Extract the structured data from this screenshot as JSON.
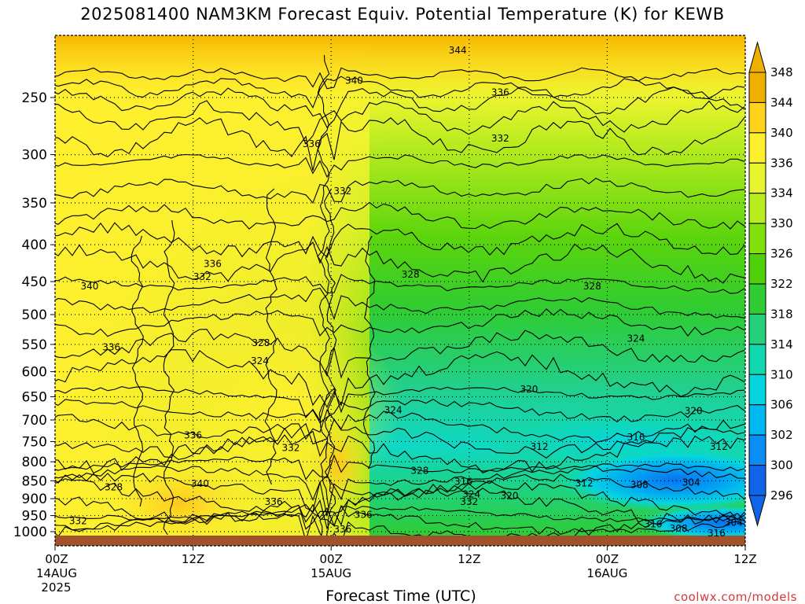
{
  "title": "2025081400 NAM3KM Forecast Equiv. Potential Temperature (K) for KEWB",
  "credit": "coolwx.com/models",
  "chart_data": {
    "type": "heatmap",
    "title": "2025081400 NAM3KM Forecast Equiv. Potential Temperature (K) for KEWB",
    "xlabel": "Forecast Time (UTC)",
    "ylabel": "",
    "x_ticks": [
      {
        "hour": 0,
        "label": "00Z",
        "sub1": "14AUG",
        "sub2": "2025"
      },
      {
        "hour": 12,
        "label": "12Z",
        "sub1": "",
        "sub2": ""
      },
      {
        "hour": 24,
        "label": "00Z",
        "sub1": "15AUG",
        "sub2": ""
      },
      {
        "hour": 36,
        "label": "12Z",
        "sub1": "",
        "sub2": ""
      },
      {
        "hour": 48,
        "label": "00Z",
        "sub1": "16AUG",
        "sub2": ""
      },
      {
        "hour": 60,
        "label": "12Z",
        "sub1": "",
        "sub2": ""
      }
    ],
    "xlim": [
      0,
      60
    ],
    "y_ticks": [
      250,
      300,
      350,
      400,
      450,
      500,
      550,
      600,
      650,
      700,
      750,
      800,
      850,
      900,
      950,
      1000
    ],
    "y_tick_labels": [
      "250",
      "300",
      "350",
      "400",
      "450",
      "500",
      "550",
      "600",
      "650",
      "700",
      "750",
      "800",
      "850",
      "900",
      "950",
      "1000"
    ],
    "ylim": [
      200,
      1015
    ],
    "y_scale": "log-pressure",
    "grid": true,
    "colorbar": {
      "labels": [
        "348",
        "344",
        "340",
        "336",
        "334",
        "330",
        "326",
        "322",
        "318",
        "314",
        "310",
        "306",
        "302",
        "300",
        "296"
      ],
      "colors": [
        "#f0b000",
        "#ffd21c",
        "#fff02e",
        "#e6f52f",
        "#b8ec1f",
        "#82e00f",
        "#4fd10a",
        "#2fcc33",
        "#24d07c",
        "#12d8b0",
        "#05d5df",
        "#02b8f3",
        "#0a8df5",
        "#1064e8"
      ]
    },
    "contour_labels": [
      {
        "t": 35.0,
        "p": 215,
        "text": "344"
      },
      {
        "t": 26.0,
        "p": 237,
        "text": "340"
      },
      {
        "t": 38.7,
        "p": 246,
        "text": "336"
      },
      {
        "t": 38.7,
        "p": 285,
        "text": "332"
      },
      {
        "t": 22.3,
        "p": 290,
        "text": "336"
      },
      {
        "t": 25.0,
        "p": 337,
        "text": "332"
      },
      {
        "t": 13.7,
        "p": 425,
        "text": "336"
      },
      {
        "t": 12.8,
        "p": 443,
        "text": "332"
      },
      {
        "t": 3.0,
        "p": 457,
        "text": "340"
      },
      {
        "t": 30.9,
        "p": 440,
        "text": "328"
      },
      {
        "t": 46.7,
        "p": 457,
        "text": "328"
      },
      {
        "t": 4.9,
        "p": 555,
        "text": "336"
      },
      {
        "t": 17.9,
        "p": 547,
        "text": "328"
      },
      {
        "t": 17.8,
        "p": 580,
        "text": "324"
      },
      {
        "t": 50.5,
        "p": 540,
        "text": "324"
      },
      {
        "t": 41.2,
        "p": 635,
        "text": "320"
      },
      {
        "t": 55.5,
        "p": 680,
        "text": "320"
      },
      {
        "t": 29.4,
        "p": 678,
        "text": "324"
      },
      {
        "t": 12.0,
        "p": 735,
        "text": "336"
      },
      {
        "t": 50.5,
        "p": 740,
        "text": "316"
      },
      {
        "t": 20.5,
        "p": 765,
        "text": "332"
      },
      {
        "t": 42.1,
        "p": 762,
        "text": "312"
      },
      {
        "t": 57.7,
        "p": 762,
        "text": "312"
      },
      {
        "t": 31.7,
        "p": 823,
        "text": "328"
      },
      {
        "t": 5.1,
        "p": 868,
        "text": "328"
      },
      {
        "t": 12.6,
        "p": 858,
        "text": "340"
      },
      {
        "t": 35.5,
        "p": 853,
        "text": "316"
      },
      {
        "t": 46.0,
        "p": 857,
        "text": "312"
      },
      {
        "t": 50.8,
        "p": 861,
        "text": "308"
      },
      {
        "t": 55.3,
        "p": 855,
        "text": "304"
      },
      {
        "t": 36.2,
        "p": 887,
        "text": "324"
      },
      {
        "t": 39.5,
        "p": 892,
        "text": "320"
      },
      {
        "t": 19.0,
        "p": 909,
        "text": "336"
      },
      {
        "t": 36.0,
        "p": 909,
        "text": "332"
      },
      {
        "t": 26.8,
        "p": 947,
        "text": "336"
      },
      {
        "t": 2.0,
        "p": 967,
        "text": "332"
      },
      {
        "t": 25.0,
        "p": 993,
        "text": "336"
      },
      {
        "t": 52.0,
        "p": 977,
        "text": "316"
      },
      {
        "t": 54.2,
        "p": 990,
        "text": "308"
      },
      {
        "t": 59.0,
        "p": 972,
        "text": "304"
      },
      {
        "t": 57.5,
        "p": 1005,
        "text": "316"
      }
    ]
  }
}
